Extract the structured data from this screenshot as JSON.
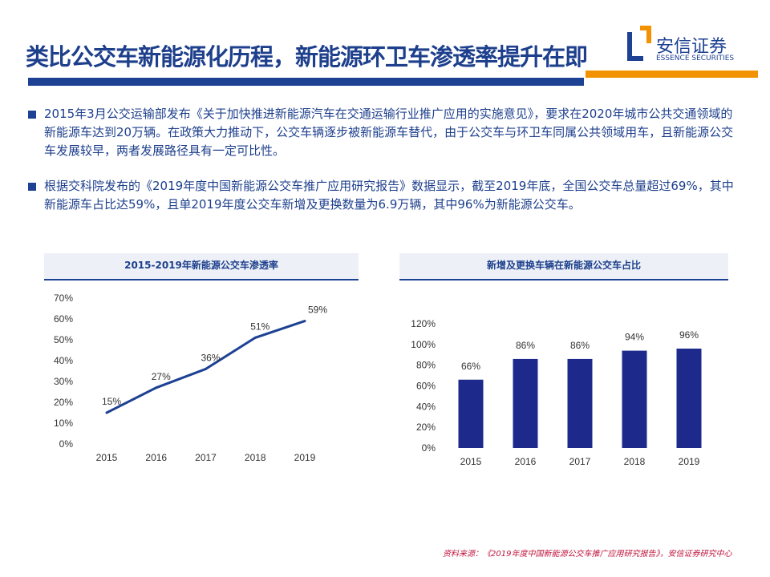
{
  "header": {
    "title": "类比公交车新能源化历程，新能源环卫车渗透率提升在即",
    "logo_cn": "安信证券",
    "logo_en": "ESSENCE SECURITIES"
  },
  "colors": {
    "primary": "#1d4193",
    "accent": "#f39200",
    "source": "#c0143c"
  },
  "bullets": [
    "2015年3月公交运输部发布《关于加快推进新能源汽车在交通运输行业推广应用的实施意见》，要求在2020年城市公共交通领域的新能源车达到20万辆。在政策大力推动下，公交车辆逐步被新能源车替代，由于公交车与环卫车同属公共领域用车，且新能源公交车发展较早，两者发展路径具有一定可比性。",
    "根据交科院发布的《2019年度中国新能源公交车推广应用研究报告》数据显示，截至2019年底，全国公交车总量超过69%，其中新能源车占比达59%，且单2019年度公交车新增及更换数量为6.9万辆，其中96%为新能源公交车。"
  ],
  "chart_data": [
    {
      "type": "line",
      "title": "2015-2019年新能源公交车渗透率",
      "categories": [
        "2015",
        "2016",
        "2017",
        "2018",
        "2019"
      ],
      "values": [
        15,
        27,
        36,
        51,
        59
      ],
      "data_labels": [
        "15%",
        "27%",
        "36%",
        "51%",
        "59%"
      ],
      "ylim": [
        0,
        70
      ],
      "yticks": [
        "0%",
        "10%",
        "20%",
        "30%",
        "40%",
        "50%",
        "60%",
        "70%"
      ],
      "grid": false,
      "color": "#1d4193"
    },
    {
      "type": "bar",
      "title": "新增及更换车辆在新能源公交车占比",
      "categories": [
        "2015",
        "2016",
        "2017",
        "2018",
        "2019"
      ],
      "values": [
        66,
        86,
        86,
        94,
        96
      ],
      "data_labels": [
        "66%",
        "86%",
        "86%",
        "94%",
        "96%"
      ],
      "ylim": [
        0,
        120
      ],
      "yticks": [
        "0%",
        "20%",
        "40%",
        "60%",
        "80%",
        "100%",
        "120%"
      ],
      "grid": false,
      "color": "#1d2a8c"
    }
  ],
  "source": "资料来源：《2019年度中国新能源公交车推广应用研究报告》，安信证券研究中心"
}
